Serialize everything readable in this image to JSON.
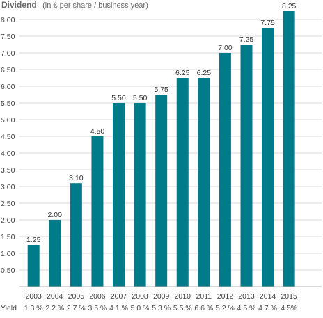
{
  "chart_data": {
    "type": "bar",
    "title": "Dividend",
    "subtitle": "(in € per share / business year)",
    "categories": [
      "2003",
      "2004",
      "2005",
      "2006",
      "2007",
      "2008",
      "2009",
      "2010",
      "2011",
      "2012",
      "2013",
      "2014",
      "2015"
    ],
    "values": [
      1.25,
      2.0,
      3.1,
      4.5,
      5.5,
      5.5,
      5.75,
      6.25,
      6.25,
      7.0,
      7.25,
      7.75,
      8.25
    ],
    "value_labels": [
      "1.25",
      "2.00",
      "3.10",
      "4.50",
      "5.50",
      "5.50",
      "5.75",
      "6.25",
      "6.25",
      "7.00",
      "7.25",
      "7.75",
      "8.25"
    ],
    "yield_label": "Yield",
    "yield_values": [
      "1.3 %",
      "2.2 %",
      "2.7 %",
      "3.5 %",
      "4.1 %",
      "5.0 %",
      "5.3 %",
      "5.5 %",
      "6.6 %",
      "5.2 %",
      "4.5 %",
      "4.7 %",
      "4.5%"
    ],
    "yticks": [
      0.5,
      1.0,
      1.5,
      2.0,
      2.5,
      3.0,
      3.5,
      4.0,
      4.5,
      5.0,
      5.5,
      6.0,
      6.5,
      7.0,
      7.5,
      8.0
    ],
    "ytick_labels": [
      "0.50",
      "1.00",
      "1.50",
      "2.00",
      "2.50",
      "3.00",
      "3.50",
      "4.00",
      "4.50",
      "5.00",
      "5.50",
      "6.00",
      "6.50",
      "7.00",
      "7.50",
      "8.00"
    ],
    "ylim": [
      0,
      8.25
    ],
    "grid": true,
    "bar_color": "#007b8a"
  }
}
